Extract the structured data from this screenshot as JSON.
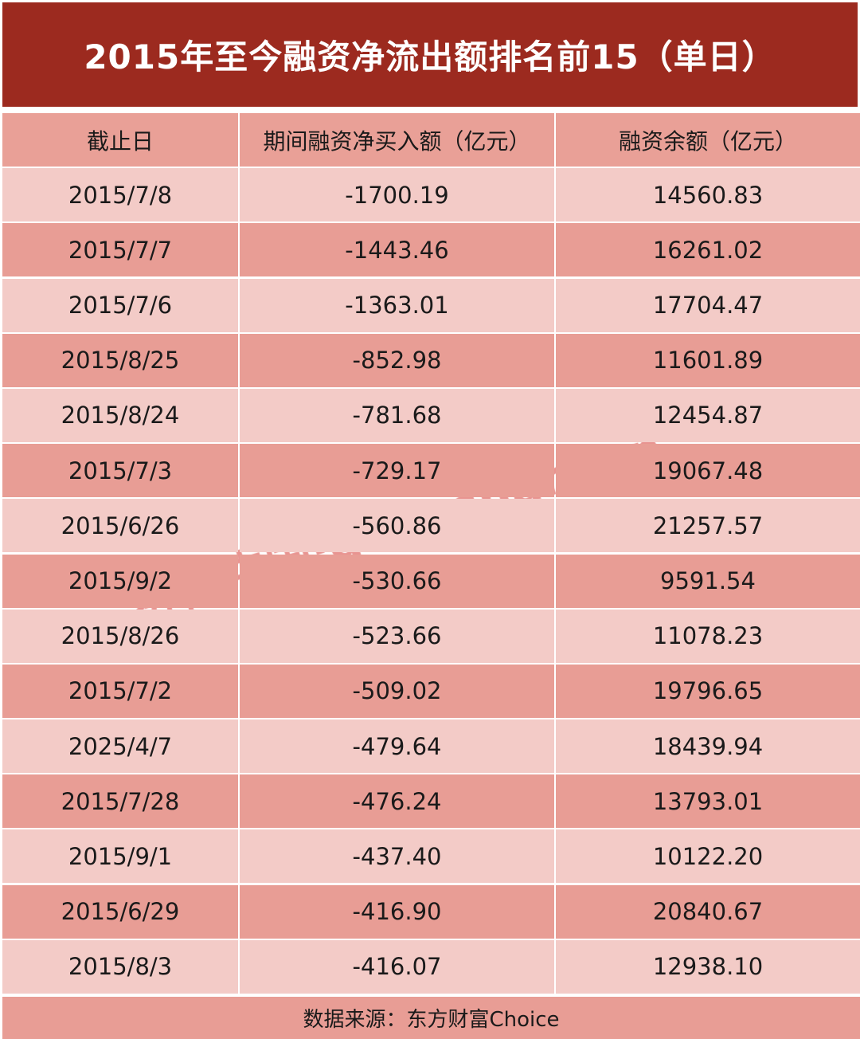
{
  "title": "2015年至今融资净流出额排名前15（单日）",
  "headers": [
    "截止日",
    "期间融资净买入额（亿元）",
    "融资余额（亿元）"
  ],
  "rows": [
    [
      "2015/7/8",
      "-1700.19",
      "14560.83"
    ],
    [
      "2015/7/7",
      "-1443.46",
      "16261.02"
    ],
    [
      "2015/7/6",
      "-1363.01",
      "17704.47"
    ],
    [
      "2015/8/25",
      "-852.98",
      "11601.89"
    ],
    [
      "2015/8/24",
      "-781.68",
      "12454.87"
    ],
    [
      "2015/7/3",
      "-729.17",
      "19067.48"
    ],
    [
      "2015/6/26",
      "-560.86",
      "21257.57"
    ],
    [
      "2015/9/2",
      "-530.66",
      "9591.54"
    ],
    [
      "2015/8/26",
      "-523.66",
      "11078.23"
    ],
    [
      "2015/7/2",
      "-509.02",
      "19796.65"
    ],
    [
      "2025/4/7",
      "-479.64",
      "18439.94"
    ],
    [
      "2015/7/28",
      "-476.24",
      "13793.01"
    ],
    [
      "2015/9/1",
      "-437.40",
      "10122.20"
    ],
    [
      "2015/6/29",
      "-416.90",
      "20840.67"
    ],
    [
      "2015/8/3",
      "-416.07",
      "12938.10"
    ]
  ],
  "footer": "数据来源：东方财富Choice",
  "watermark": "券商中国·quanshangcn",
  "colors": {
    "title_bg": "#9c2a1f",
    "header_bg": "#e9a097",
    "row_light": "#f3cbc7",
    "row_dark": "#e89d95"
  }
}
